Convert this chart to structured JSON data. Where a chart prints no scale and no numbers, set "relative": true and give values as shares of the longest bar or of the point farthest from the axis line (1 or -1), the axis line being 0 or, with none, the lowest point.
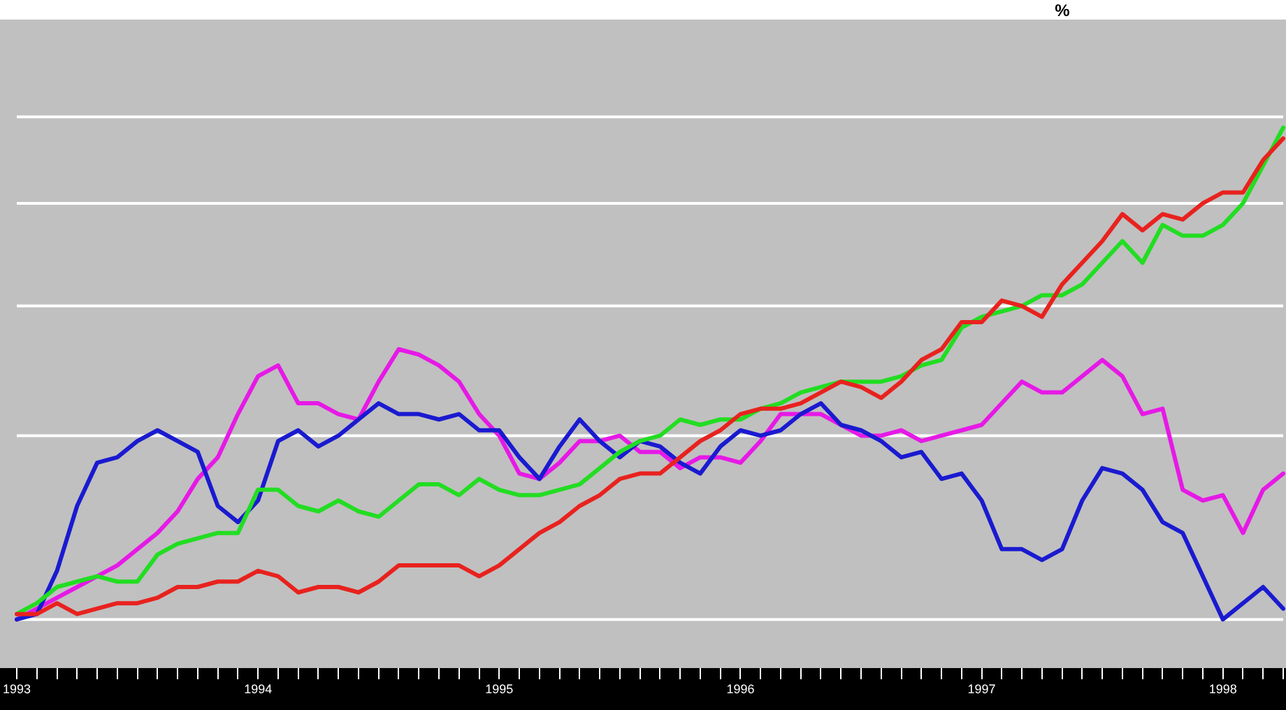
{
  "chart_data": {
    "type": "line",
    "relative": true,
    "annotations": [
      "%"
    ],
    "categories": [
      "1993",
      null,
      null,
      null,
      null,
      null,
      null,
      null,
      null,
      null,
      null,
      null,
      "1994",
      null,
      null,
      null,
      null,
      null,
      null,
      null,
      null,
      null,
      null,
      null,
      "1995",
      null,
      null,
      null,
      null,
      null,
      null,
      null,
      null,
      null,
      null,
      null,
      "1996",
      null,
      null,
      null,
      null,
      null,
      null,
      null,
      null,
      null,
      null,
      null,
      "1997",
      null,
      null,
      null,
      null,
      null,
      null,
      null,
      null,
      null,
      null,
      null,
      "1998",
      null,
      null,
      null
    ],
    "series": [
      {
        "color": "#e8221e",
        "values": [
          0.1,
          0.1,
          0.12,
          0.1,
          0.11,
          0.12,
          0.12,
          0.13,
          0.15,
          0.15,
          0.16,
          0.16,
          0.18,
          0.17,
          0.14,
          0.15,
          0.15,
          0.14,
          0.16,
          0.19,
          0.19,
          0.19,
          0.19,
          0.17,
          0.19,
          0.22,
          0.25,
          0.27,
          0.3,
          0.32,
          0.35,
          0.36,
          0.36,
          0.39,
          0.42,
          0.44,
          0.47,
          0.48,
          0.48,
          0.49,
          0.51,
          0.53,
          0.52,
          0.5,
          0.53,
          0.57,
          0.59,
          0.64,
          0.64,
          0.68,
          0.67,
          0.65,
          0.71,
          0.75,
          0.79,
          0.84,
          0.81,
          0.84,
          0.83,
          0.86,
          0.88,
          0.88,
          0.94,
          0.98
        ]
      },
      {
        "color": "#22dd22",
        "values": [
          0.1,
          0.12,
          0.15,
          0.16,
          0.17,
          0.16,
          0.16,
          0.21,
          0.23,
          0.24,
          0.25,
          0.25,
          0.33,
          0.33,
          0.3,
          0.29,
          0.31,
          0.29,
          0.28,
          0.31,
          0.34,
          0.34,
          0.32,
          0.35,
          0.33,
          0.32,
          0.32,
          0.33,
          0.34,
          0.37,
          0.4,
          0.42,
          0.43,
          0.46,
          0.45,
          0.46,
          0.46,
          0.48,
          0.49,
          0.51,
          0.52,
          0.53,
          0.53,
          0.53,
          0.54,
          0.56,
          0.57,
          0.63,
          0.65,
          0.66,
          0.67,
          0.69,
          0.69,
          0.71,
          0.75,
          0.79,
          0.75,
          0.82,
          0.8,
          0.8,
          0.82,
          0.86,
          0.93,
          1.0
        ]
      },
      {
        "color": "#1a1ad0",
        "values": [
          0.09,
          0.1,
          0.18,
          0.3,
          0.38,
          0.39,
          0.42,
          0.44,
          0.42,
          0.4,
          0.3,
          0.27,
          0.31,
          0.42,
          0.44,
          0.41,
          0.43,
          0.46,
          0.49,
          0.47,
          0.47,
          0.46,
          0.47,
          0.44,
          0.44,
          0.39,
          0.35,
          0.41,
          0.46,
          0.42,
          0.39,
          0.42,
          0.41,
          0.38,
          0.36,
          0.41,
          0.44,
          0.43,
          0.44,
          0.47,
          0.49,
          0.45,
          0.44,
          0.42,
          0.39,
          0.4,
          0.35,
          0.36,
          0.31,
          0.22,
          0.22,
          0.2,
          0.22,
          0.31,
          0.37,
          0.36,
          0.33,
          0.27,
          0.25,
          0.17,
          0.09,
          0.12,
          0.15,
          0.11
        ]
      },
      {
        "color": "#e619e6",
        "values": [
          0.09,
          0.11,
          0.13,
          0.15,
          0.17,
          0.19,
          0.22,
          0.25,
          0.29,
          0.35,
          0.39,
          0.47,
          0.54,
          0.56,
          0.49,
          0.49,
          0.47,
          0.46,
          0.53,
          0.59,
          0.58,
          0.56,
          0.53,
          0.47,
          0.43,
          0.36,
          0.35,
          0.38,
          0.42,
          0.42,
          0.43,
          0.4,
          0.4,
          0.37,
          0.39,
          0.39,
          0.38,
          0.42,
          0.47,
          0.47,
          0.47,
          0.45,
          0.43,
          0.43,
          0.44,
          0.42,
          0.43,
          0.44,
          0.45,
          0.49,
          0.53,
          0.51,
          0.51,
          0.54,
          0.57,
          0.54,
          0.47,
          0.48,
          0.33,
          0.31,
          0.32,
          0.25,
          0.33,
          0.36
        ]
      }
    ],
    "ref_lines": [
      {
        "axis": "y",
        "value": 0.09,
        "color": "#ffffff"
      },
      {
        "axis": "y",
        "value": 0.43,
        "color": "#ffffff"
      },
      {
        "axis": "y",
        "value": 0.67,
        "color": "#ffffff"
      },
      {
        "axis": "y",
        "value": 0.86,
        "color": "#ffffff"
      },
      {
        "axis": "y",
        "value": 1.02,
        "color": "#ffffff"
      }
    ],
    "marker": "none",
    "line_style": "solid",
    "legend": false,
    "grid": false
  }
}
